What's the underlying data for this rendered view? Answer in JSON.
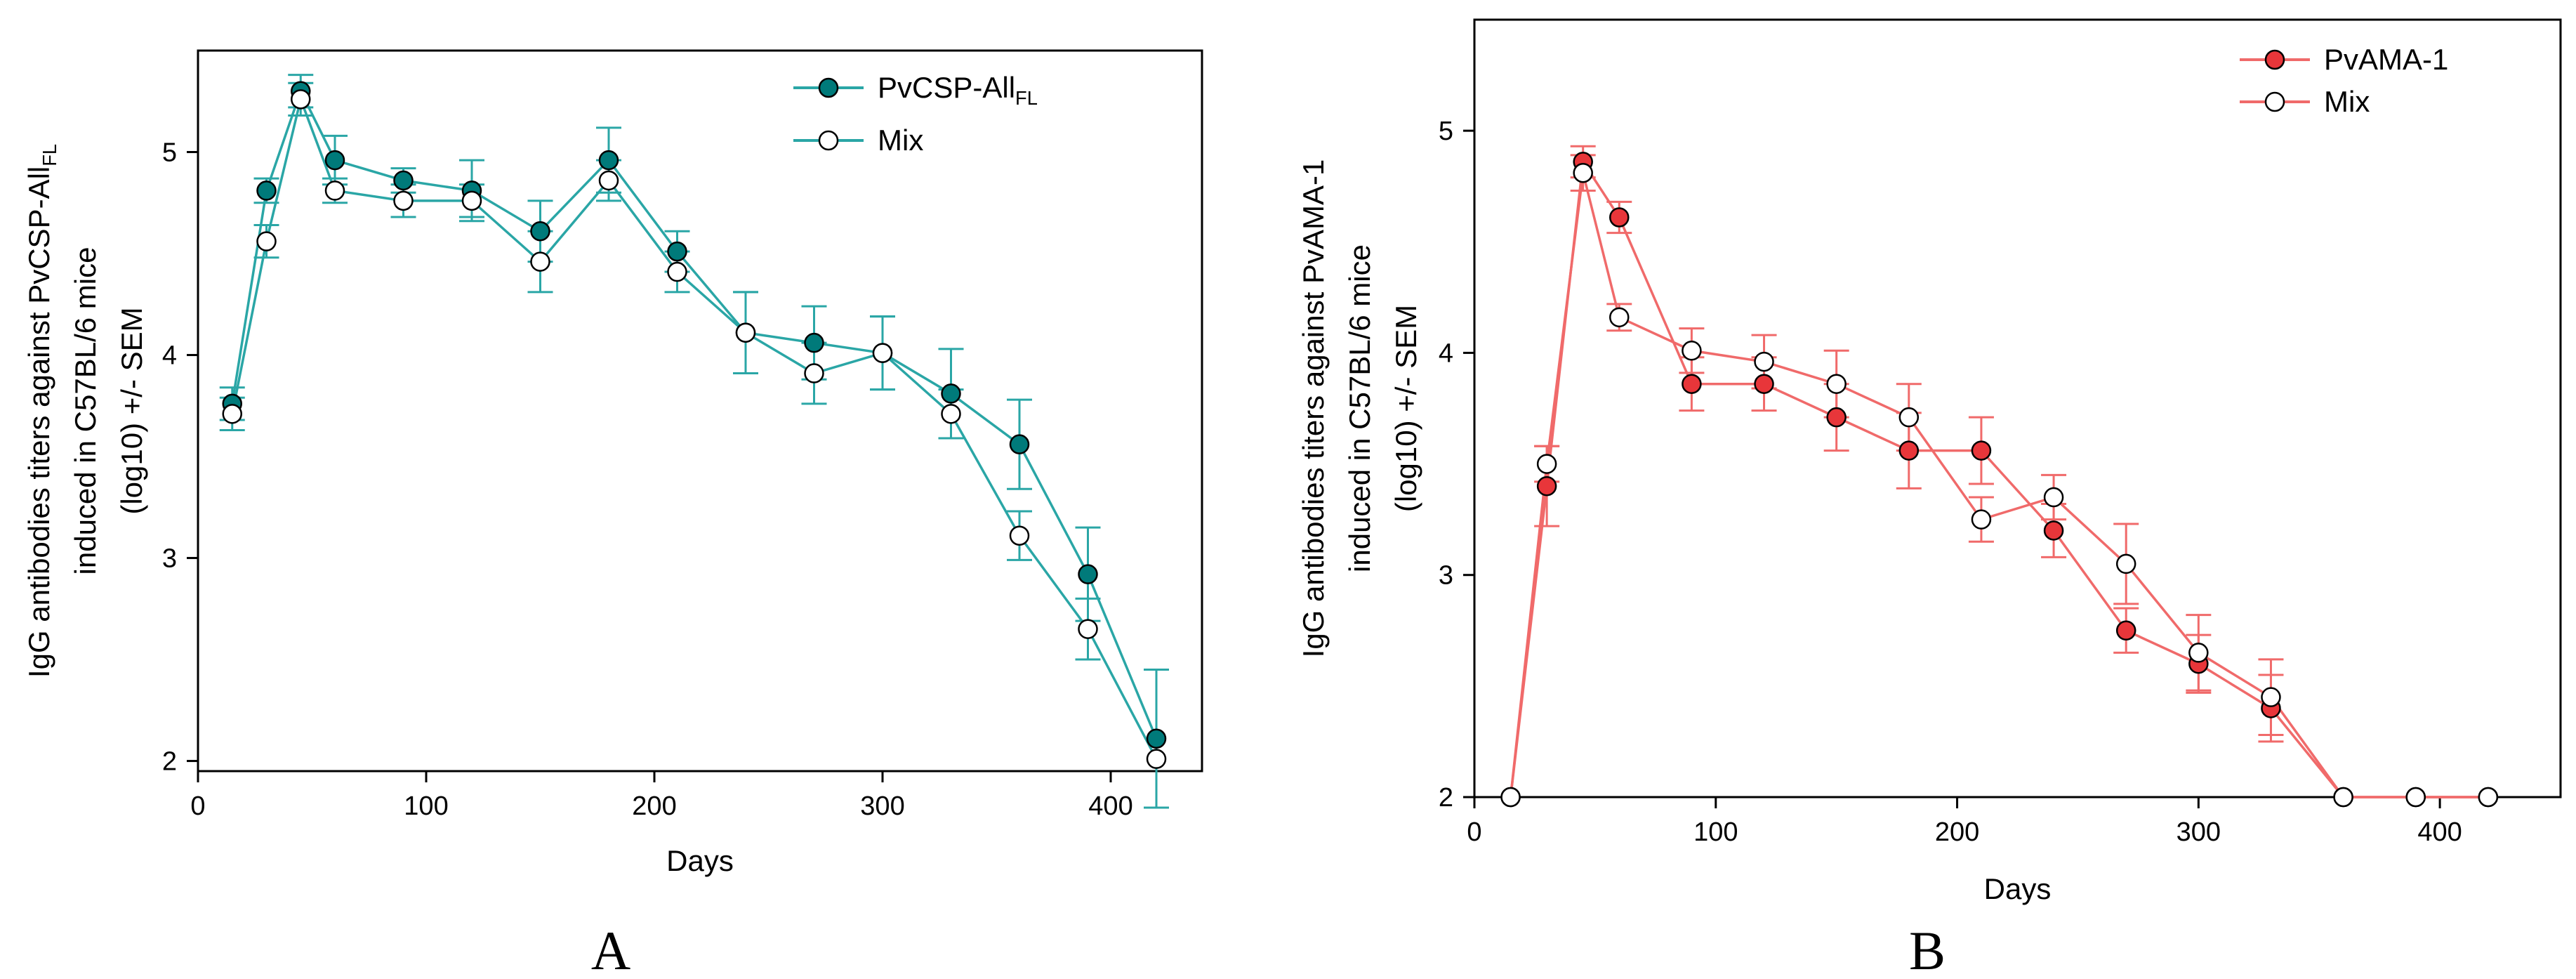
{
  "chart_data": [
    {
      "type": "line",
      "panel_label": "A",
      "xlabel": "Days",
      "ylabel_lines": [
        "IgG antibodies titers against PvCSP-All",
        "induced in C57BL/6 mice",
        "(log10) +/- SEM"
      ],
      "ylabel_subscript": "FL",
      "xlim": [
        0,
        440
      ],
      "ylim": [
        1.95,
        5.5
      ],
      "x_ticks": [
        0,
        100,
        200,
        300,
        400
      ],
      "y_ticks": [
        2,
        3,
        4,
        5
      ],
      "legend_position": "top-right",
      "series": [
        {
          "name": "PvCSP-All",
          "name_subscript": "FL",
          "marker": "filled",
          "color": "#007a7a",
          "line_color": "#2aa6a6",
          "x": [
            15,
            30,
            45,
            60,
            90,
            120,
            150,
            180,
            210,
            240,
            270,
            300,
            330,
            360,
            390,
            420
          ],
          "y": [
            3.76,
            4.81,
            5.3,
            4.96,
            4.86,
            4.81,
            4.61,
            4.96,
            4.51,
            4.11,
            4.06,
            4.01,
            3.81,
            3.56,
            2.92,
            2.11
          ],
          "err": [
            0.08,
            0.06,
            0.08,
            0.12,
            0.06,
            0.15,
            0.15,
            0.16,
            0.1,
            0.2,
            0.18,
            0.18,
            0.22,
            0.22,
            0.23,
            0.34
          ]
        },
        {
          "name": "Mix",
          "marker": "open",
          "color": "#2aa6a6",
          "line_color": "#2aa6a6",
          "x": [
            15,
            30,
            45,
            60,
            90,
            120,
            150,
            180,
            210,
            240,
            270,
            300,
            330,
            360,
            390,
            420
          ],
          "y": [
            3.71,
            4.56,
            5.26,
            4.81,
            4.76,
            4.76,
            4.46,
            4.86,
            4.41,
            4.11,
            3.91,
            4.01,
            3.71,
            3.11,
            2.65,
            2.01
          ],
          "err": [
            0.08,
            0.08,
            0.08,
            0.06,
            0.08,
            0.08,
            0.15,
            0.1,
            0.1,
            0.2,
            0.15,
            0.18,
            0.12,
            0.12,
            0.15,
            0.0
          ]
        }
      ]
    },
    {
      "type": "line",
      "panel_label": "B",
      "xlabel": "Days",
      "ylabel_lines": [
        "IgG antibodies titers against PvAMA-1",
        "induced in C57BL/6 mice",
        "(log10) +/- SEM"
      ],
      "xlim": [
        0,
        450
      ],
      "ylim": [
        2.0,
        5.5
      ],
      "x_ticks": [
        0,
        100,
        200,
        300,
        400
      ],
      "y_ticks": [
        2,
        3,
        4,
        5
      ],
      "legend_position": "top-right",
      "series": [
        {
          "name": "PvAMA-1",
          "marker": "filled",
          "color": "#e8363a",
          "line_color": "#f06a6a",
          "x": [
            15,
            30,
            45,
            60,
            90,
            120,
            150,
            180,
            210,
            240,
            270,
            300,
            330,
            360,
            390,
            420
          ],
          "y": [
            2.0,
            3.4,
            4.86,
            4.61,
            3.86,
            3.86,
            3.71,
            3.56,
            3.56,
            3.2,
            2.75,
            2.6,
            2.4,
            2.0,
            2.0,
            2.0
          ],
          "err": [
            0.0,
            0.18,
            0.07,
            0.07,
            0.12,
            0.12,
            0.15,
            0.17,
            0.15,
            0.12,
            0.1,
            0.13,
            0.15,
            0.0,
            0.0,
            0.0
          ]
        },
        {
          "name": "Mix",
          "marker": "open",
          "color": "#f06a6a",
          "line_color": "#f06a6a",
          "x": [
            15,
            30,
            45,
            60,
            90,
            120,
            150,
            180,
            210,
            240,
            270,
            300,
            330,
            360,
            390,
            420
          ],
          "y": [
            2.0,
            3.5,
            4.81,
            4.16,
            4.01,
            3.96,
            3.86,
            3.71,
            3.25,
            3.35,
            3.05,
            2.65,
            2.45,
            2.0,
            2.0,
            2.0
          ],
          "err": [
            0.0,
            0.08,
            0.08,
            0.06,
            0.1,
            0.12,
            0.15,
            0.15,
            0.1,
            0.1,
            0.18,
            0.17,
            0.17,
            0.0,
            0.0,
            0.0
          ]
        }
      ]
    }
  ]
}
